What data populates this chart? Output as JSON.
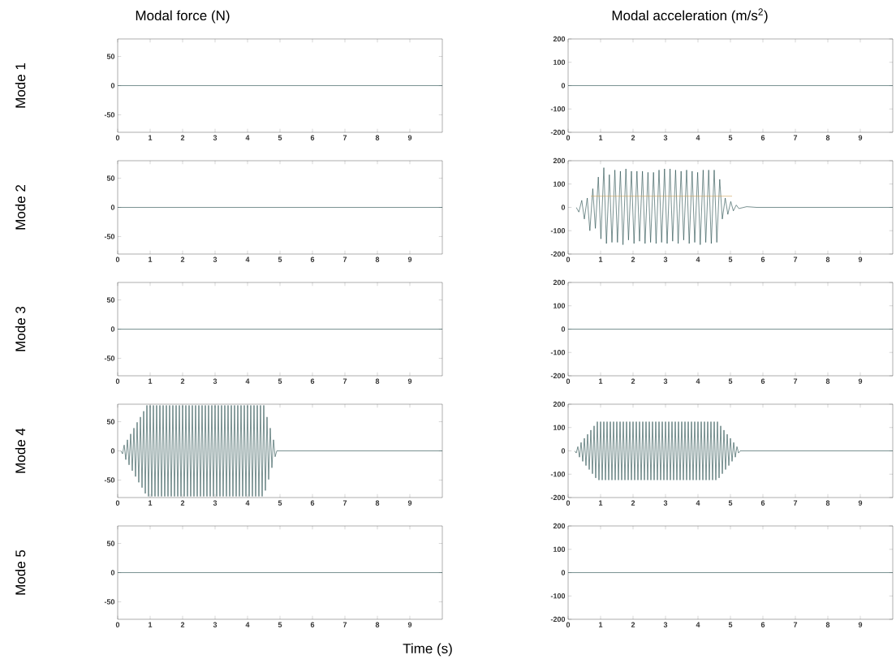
{
  "chart_data": [
    {
      "type": "line",
      "title": "Modal force (N)",
      "ylabel": "Mode 1",
      "xlim": [
        0,
        10
      ],
      "ylim": [
        -80,
        80
      ],
      "xticks": [
        0,
        1,
        2,
        3,
        4,
        5,
        6,
        7,
        8,
        9
      ],
      "yticks": [
        -50,
        0,
        50
      ],
      "series": [
        {
          "color": "#204848",
          "x": [
            0,
            10
          ],
          "values": [
            0,
            0
          ]
        }
      ]
    },
    {
      "type": "line",
      "title": "Modal acceleration (m/s$^{2}$)",
      "xlim": [
        0,
        10
      ],
      "ylim": [
        -200,
        200
      ],
      "xticks": [
        0,
        1,
        2,
        3,
        4,
        5,
        6,
        7,
        8,
        9
      ],
      "yticks": [
        -200,
        -100,
        0,
        100,
        200
      ],
      "series": [
        {
          "color": "#204848",
          "x": [
            0,
            10
          ],
          "values": [
            0,
            0
          ]
        }
      ]
    },
    {
      "type": "line",
      "ylabel": "Mode 2",
      "xlim": [
        0,
        10
      ],
      "ylim": [
        -80,
        80
      ],
      "xticks": [
        0,
        1,
        2,
        3,
        4,
        5,
        6,
        7,
        8,
        9
      ],
      "yticks": [
        -50,
        0,
        50
      ],
      "series": [
        {
          "color": "#204848",
          "x": [
            0,
            10
          ],
          "values": [
            0,
            0
          ]
        }
      ]
    },
    {
      "type": "line",
      "xlim": [
        0,
        10
      ],
      "ylim": [
        -200,
        200
      ],
      "xticks": [
        0,
        1,
        2,
        3,
        4,
        5,
        6,
        7,
        8,
        9
      ],
      "yticks": [
        -200,
        -100,
        0,
        100,
        200
      ],
      "series": [
        {
          "color": "#204848",
          "x": [
            0.25,
            0.33,
            0.42,
            0.5,
            0.59,
            0.67,
            0.76,
            0.84,
            0.93,
            1.01,
            1.1,
            1.18,
            1.27,
            1.35,
            1.44,
            1.52,
            1.61,
            1.69,
            1.78,
            1.86,
            1.95,
            2.03,
            2.12,
            2.2,
            2.29,
            2.37,
            2.46,
            2.54,
            2.63,
            2.71,
            2.8,
            2.88,
            2.97,
            3.05,
            3.14,
            3.22,
            3.31,
            3.39,
            3.48,
            3.56,
            3.65,
            3.73,
            3.82,
            3.9,
            3.99,
            4.07,
            4.16,
            4.24,
            4.33,
            4.41,
            4.5,
            4.58,
            4.67,
            4.75,
            4.84,
            4.92,
            5.01,
            5.09,
            5.18,
            5.26,
            5.5,
            5.8,
            10
          ],
          "values": [
            0,
            -20,
            30,
            -50,
            40,
            -100,
            80,
            -90,
            130,
            -135,
            170,
            -155,
            140,
            -150,
            160,
            -150,
            155,
            -160,
            165,
            -140,
            155,
            -155,
            155,
            -145,
            155,
            -155,
            150,
            -150,
            150,
            -155,
            160,
            -150,
            165,
            -155,
            165,
            -145,
            160,
            -155,
            155,
            -140,
            160,
            -155,
            155,
            -150,
            150,
            -160,
            160,
            -150,
            160,
            -155,
            160,
            -150,
            120,
            -50,
            40,
            -30,
            25,
            -15,
            10,
            -5,
            3,
            0,
            0
          ]
        },
        {
          "color": "#d0a050",
          "x": [
            0.7,
            5.05
          ],
          "values": [
            48,
            48
          ]
        }
      ]
    },
    {
      "type": "line",
      "ylabel": "Mode 3",
      "xlim": [
        0,
        10
      ],
      "ylim": [
        -80,
        80
      ],
      "xticks": [
        0,
        1,
        2,
        3,
        4,
        5,
        6,
        7,
        8,
        9
      ],
      "yticks": [
        -50,
        0,
        50
      ],
      "series": [
        {
          "color": "#204848",
          "x": [
            0,
            10
          ],
          "values": [
            0,
            0
          ]
        }
      ]
    },
    {
      "type": "line",
      "xlim": [
        0,
        10
      ],
      "ylim": [
        -200,
        200
      ],
      "xticks": [
        0,
        1,
        2,
        3,
        4,
        5,
        6,
        7,
        8,
        9
      ],
      "yticks": [
        -200,
        -100,
        0,
        100,
        200
      ],
      "series": [
        {
          "color": "#204848",
          "x": [
            0,
            10
          ],
          "values": [
            0,
            0
          ]
        }
      ]
    },
    {
      "type": "line",
      "ylabel": "Mode 4",
      "xlim": [
        0,
        10
      ],
      "ylim": [
        -80,
        80
      ],
      "xticks": [
        0,
        1,
        2,
        3,
        4,
        5,
        6,
        7,
        8,
        9
      ],
      "yticks": [
        -50,
        0,
        50
      ],
      "series": [
        {
          "color": "#204848",
          "x": [
            0.1,
            0.15,
            0.2,
            0.25,
            0.3,
            0.35,
            0.4,
            0.45,
            0.5,
            0.55,
            0.6,
            0.65,
            0.7,
            0.75,
            0.8,
            0.85,
            0.9,
            0.95,
            1,
            1.05,
            1.1,
            1.15,
            1.2,
            1.25,
            1.3,
            1.35,
            1.4,
            1.45,
            1.5,
            1.55,
            1.6,
            1.65,
            1.7,
            1.75,
            1.8,
            1.85,
            1.9,
            1.95,
            2,
            2.05,
            2.1,
            2.15,
            2.2,
            2.25,
            2.3,
            2.35,
            2.4,
            2.45,
            2.5,
            2.55,
            2.6,
            2.65,
            2.7,
            2.75,
            2.8,
            2.85,
            2.9,
            2.95,
            3,
            3.05,
            3.1,
            3.15,
            3.2,
            3.25,
            3.3,
            3.35,
            3.4,
            3.45,
            3.5,
            3.55,
            3.6,
            3.65,
            3.7,
            3.75,
            3.8,
            3.85,
            3.9,
            3.95,
            4,
            4.05,
            4.1,
            4.15,
            4.2,
            4.25,
            4.3,
            4.35,
            4.4,
            4.45,
            4.5,
            4.55,
            4.6,
            4.65,
            4.7,
            4.75,
            4.8,
            4.85,
            4.9,
            5,
            10
          ],
          "values": [
            0,
            -5,
            10,
            -15,
            19,
            -24,
            29,
            -34,
            39,
            -44,
            49,
            -54,
            58,
            -63,
            68,
            -73,
            78,
            -78,
            78,
            -78,
            78,
            -78,
            78,
            -78,
            78,
            -78,
            78,
            -78,
            78,
            -78,
            78,
            -78,
            78,
            -78,
            78,
            -78,
            78,
            -78,
            78,
            -78,
            78,
            -78,
            78,
            -78,
            78,
            -78,
            78,
            -78,
            78,
            -78,
            78,
            -78,
            78,
            -78,
            78,
            -78,
            78,
            -78,
            78,
            -78,
            78,
            -78,
            78,
            -78,
            78,
            -78,
            78,
            -78,
            78,
            -78,
            78,
            -78,
            78,
            -78,
            78,
            -78,
            78,
            -78,
            78,
            -78,
            78,
            -78,
            78,
            -78,
            78,
            -78,
            78,
            -78,
            78,
            -68,
            58,
            -49,
            39,
            -29,
            19,
            -10,
            0,
            0,
            0
          ]
        }
      ]
    },
    {
      "type": "line",
      "xlim": [
        0,
        10
      ],
      "ylim": [
        -200,
        200
      ],
      "xticks": [
        0,
        1,
        2,
        3,
        4,
        5,
        6,
        7,
        8,
        9
      ],
      "yticks": [
        -200,
        -100,
        0,
        100,
        200
      ],
      "series": [
        {
          "color": "#204848",
          "x": [
            0.2,
            0.25,
            0.3,
            0.35,
            0.4,
            0.45,
            0.5,
            0.55,
            0.6,
            0.65,
            0.7,
            0.75,
            0.8,
            0.85,
            0.9,
            0.95,
            1,
            1.05,
            1.1,
            1.15,
            1.2,
            1.25,
            1.3,
            1.35,
            1.4,
            1.45,
            1.5,
            1.55,
            1.6,
            1.65,
            1.7,
            1.75,
            1.8,
            1.85,
            1.9,
            1.95,
            2,
            2.05,
            2.1,
            2.15,
            2.2,
            2.25,
            2.3,
            2.35,
            2.4,
            2.45,
            2.5,
            2.55,
            2.6,
            2.65,
            2.7,
            2.75,
            2.8,
            2.85,
            2.9,
            2.95,
            3,
            3.05,
            3.1,
            3.15,
            3.2,
            3.25,
            3.3,
            3.35,
            3.4,
            3.45,
            3.5,
            3.55,
            3.6,
            3.65,
            3.7,
            3.75,
            3.8,
            3.85,
            3.9,
            3.95,
            4,
            4.05,
            4.1,
            4.15,
            4.2,
            4.25,
            4.3,
            4.35,
            4.4,
            4.45,
            4.5,
            4.55,
            4.6,
            4.65,
            4.7,
            4.75,
            4.8,
            4.85,
            4.9,
            4.95,
            5,
            5.05,
            5.1,
            5.15,
            5.2,
            5.25,
            5.3,
            10
          ],
          "values": [
            0,
            -9,
            18,
            -27,
            36,
            -45,
            54,
            -63,
            71,
            -80,
            89,
            -98,
            107,
            -116,
            125,
            -125,
            125,
            -125,
            125,
            -125,
            125,
            -125,
            125,
            -125,
            125,
            -125,
            125,
            -125,
            125,
            -125,
            125,
            -125,
            125,
            -125,
            125,
            -125,
            125,
            -125,
            125,
            -125,
            125,
            -125,
            125,
            -125,
            125,
            -125,
            125,
            -125,
            125,
            -125,
            125,
            -125,
            125,
            -125,
            125,
            -125,
            125,
            -125,
            125,
            -125,
            125,
            -125,
            125,
            -125,
            125,
            -125,
            125,
            -125,
            125,
            -125,
            125,
            -125,
            125,
            -125,
            125,
            -125,
            125,
            -125,
            125,
            -125,
            125,
            -125,
            125,
            -125,
            125,
            -125,
            125,
            -125,
            125,
            -116,
            107,
            -98,
            89,
            -80,
            71,
            -63,
            54,
            -45,
            36,
            -27,
            18,
            -9,
            0,
            0
          ]
        }
      ]
    },
    {
      "type": "line",
      "ylabel": "Mode 5",
      "xlabel": "Time (s)",
      "xlim": [
        0,
        10
      ],
      "ylim": [
        -80,
        80
      ],
      "xticks": [
        0,
        1,
        2,
        3,
        4,
        5,
        6,
        7,
        8,
        9
      ],
      "yticks": [
        -50,
        0,
        50
      ],
      "series": [
        {
          "color": "#204848",
          "x": [
            0,
            10
          ],
          "values": [
            0,
            0
          ]
        }
      ]
    },
    {
      "type": "line",
      "xlim": [
        0,
        10
      ],
      "ylim": [
        -200,
        200
      ],
      "xticks": [
        0,
        1,
        2,
        3,
        4,
        5,
        6,
        7,
        8,
        9
      ],
      "yticks": [
        -200,
        -100,
        0,
        100,
        200
      ],
      "series": [
        {
          "color": "#204848",
          "x": [
            0,
            10
          ],
          "values": [
            0,
            0
          ]
        }
      ]
    }
  ]
}
